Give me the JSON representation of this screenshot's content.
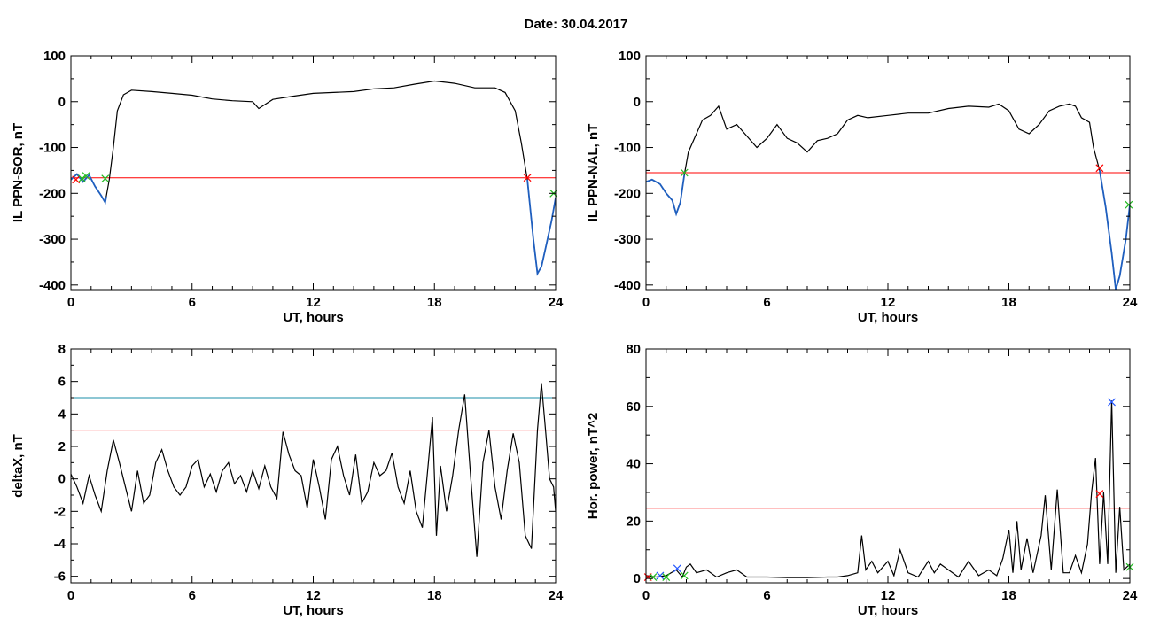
{
  "figure": {
    "date_label": "Date:",
    "date_value": "30.04.2017"
  },
  "colors": {
    "axis": "#000000",
    "signal": "#000000",
    "highlight": "#1f5fbf",
    "threshold_red": "#ff0000",
    "threshold_teal": "#1b8fa8",
    "marker_red": "#ff0000",
    "marker_green": "#22bb22",
    "marker_blue": "#2255ff"
  },
  "chart_data": [
    {
      "id": "ppn-sor",
      "type": "line",
      "xlabel": "UT, hours",
      "ylabel": "IL PPN-SOR, nT",
      "xlim": [
        0,
        24
      ],
      "ylim": [
        -410,
        100
      ],
      "xticks": [
        0,
        6,
        12,
        18,
        24
      ],
      "yticks": [
        -400,
        -300,
        -200,
        -100,
        0,
        100
      ],
      "series": [
        {
          "color": "signal",
          "x": [
            0,
            0.3,
            0.6,
            0.9,
            1.2,
            1.5,
            1.7,
            1.9,
            2.1,
            2.3,
            2.6,
            3,
            4,
            5,
            6,
            7,
            8,
            9,
            9.3,
            10,
            11,
            12,
            13,
            14,
            15,
            16,
            17,
            18,
            19,
            20,
            21,
            21.5,
            22,
            22.3,
            22.6,
            22.9,
            23.1,
            23.3,
            23.5,
            23.8,
            24
          ],
          "y": [
            -170,
            -158,
            -175,
            -160,
            -185,
            -205,
            -220,
            -170,
            -100,
            -20,
            15,
            25,
            22,
            18,
            14,
            6,
            2,
            0,
            -15,
            5,
            12,
            18,
            20,
            22,
            28,
            30,
            38,
            45,
            40,
            30,
            30,
            20,
            -20,
            -90,
            -170,
            -300,
            -375,
            -360,
            -320,
            -260,
            -210
          ]
        }
      ],
      "highlight_ranges": [
        [
          0,
          1.75
        ],
        [
          22.6,
          24
        ]
      ],
      "thresholds": [
        {
          "y": -166,
          "color": "threshold_red"
        }
      ],
      "markers": [
        {
          "x": 0.25,
          "y": -170,
          "color": "marker_red"
        },
        {
          "x": 0.55,
          "y": -168,
          "color": "marker_green"
        },
        {
          "x": 0.75,
          "y": -162,
          "color": "marker_green"
        },
        {
          "x": 1.7,
          "y": -168,
          "color": "marker_green"
        },
        {
          "x": 22.6,
          "y": -166,
          "color": "marker_red"
        },
        {
          "x": 23.9,
          "y": -200,
          "color": "marker_green"
        }
      ]
    },
    {
      "id": "ppn-nal",
      "type": "line",
      "xlabel": "UT, hours",
      "ylabel": "IL PPN-NAL, nT",
      "xlim": [
        0,
        24
      ],
      "ylim": [
        -410,
        100
      ],
      "xticks": [
        0,
        6,
        12,
        18,
        24
      ],
      "yticks": [
        -400,
        -300,
        -200,
        -100,
        0,
        100
      ],
      "series": [
        {
          "color": "signal",
          "x": [
            0,
            0.3,
            0.7,
            1,
            1.3,
            1.5,
            1.7,
            1.9,
            2.1,
            2.4,
            2.8,
            3.2,
            3.6,
            4,
            4.5,
            5,
            5.5,
            6,
            6.5,
            7,
            7.5,
            8,
            8.5,
            9,
            9.5,
            10,
            10.5,
            11,
            12,
            13,
            14,
            15,
            16,
            17,
            17.5,
            18,
            18.5,
            19,
            19.5,
            20,
            20.5,
            21,
            21.3,
            21.6,
            22,
            22.2,
            22.5,
            22.8,
            23.1,
            23.3,
            23.5,
            23.8,
            24
          ],
          "y": [
            -175,
            -170,
            -180,
            -200,
            -215,
            -245,
            -220,
            -160,
            -110,
            -80,
            -40,
            -30,
            -10,
            -60,
            -50,
            -75,
            -100,
            -80,
            -50,
            -80,
            -90,
            -110,
            -85,
            -80,
            -70,
            -40,
            -30,
            -35,
            -30,
            -25,
            -25,
            -15,
            -10,
            -12,
            -5,
            -20,
            -60,
            -70,
            -50,
            -20,
            -10,
            -5,
            -10,
            -35,
            -45,
            -100,
            -150,
            -230,
            -330,
            -410,
            -380,
            -300,
            -225
          ]
        }
      ],
      "highlight_ranges": [
        [
          0,
          1.9
        ],
        [
          22.5,
          24
        ]
      ],
      "thresholds": [
        {
          "y": -155,
          "color": "threshold_red"
        }
      ],
      "markers": [
        {
          "x": 1.9,
          "y": -155,
          "color": "marker_green"
        },
        {
          "x": 22.5,
          "y": -145,
          "color": "marker_red"
        },
        {
          "x": 23.95,
          "y": -225,
          "color": "marker_green"
        }
      ]
    },
    {
      "id": "deltax",
      "type": "line",
      "xlabel": "UT, hours",
      "ylabel": "deltaX, nT",
      "xlim": [
        0,
        24
      ],
      "ylim": [
        -6.4,
        8
      ],
      "xticks": [
        0,
        6,
        12,
        18,
        24
      ],
      "yticks": [
        -6,
        -4,
        -2,
        0,
        2,
        4,
        6,
        8
      ],
      "series": [
        {
          "color": "signal",
          "x": [
            0,
            0.3,
            0.6,
            0.9,
            1.2,
            1.5,
            1.8,
            2.1,
            2.4,
            2.7,
            3,
            3.3,
            3.6,
            3.9,
            4.2,
            4.5,
            4.8,
            5.1,
            5.4,
            5.7,
            6,
            6.3,
            6.6,
            6.9,
            7.2,
            7.5,
            7.8,
            8.1,
            8.4,
            8.7,
            9,
            9.3,
            9.6,
            9.9,
            10.2,
            10.5,
            10.8,
            11.1,
            11.4,
            11.7,
            12,
            12.3,
            12.6,
            12.9,
            13.2,
            13.5,
            13.8,
            14.1,
            14.4,
            14.7,
            15,
            15.3,
            15.6,
            15.9,
            16.2,
            16.5,
            16.8,
            17.1,
            17.4,
            17.7,
            17.9,
            18.1,
            18.3,
            18.6,
            18.9,
            19.2,
            19.5,
            19.8,
            20.1,
            20.4,
            20.7,
            21,
            21.3,
            21.6,
            21.9,
            22.2,
            22.5,
            22.8,
            23.1,
            23.3,
            23.5,
            23.7,
            23.9,
            24
          ],
          "y": [
            0.3,
            -0.5,
            -1.5,
            0.2,
            -1,
            -2,
            0.5,
            2.4,
            1,
            -0.5,
            -2,
            0.5,
            -1.5,
            -1,
            1,
            1.8,
            0.5,
            -0.5,
            -1,
            -0.5,
            0.8,
            1.2,
            -0.5,
            0.3,
            -0.8,
            0.5,
            1,
            -0.3,
            0.2,
            -0.8,
            0.5,
            -0.6,
            0.8,
            -0.5,
            -1.2,
            2.9,
            1.5,
            0.5,
            0.2,
            -1.8,
            1.2,
            -0.5,
            -2.5,
            1.2,
            2,
            0.2,
            -1,
            1.5,
            -1.5,
            -0.8,
            1,
            0.2,
            0.5,
            1.6,
            -0.5,
            -1.5,
            0.5,
            -2,
            -3,
            1,
            3.8,
            -3.5,
            0.8,
            -2,
            0.2,
            3,
            5.2,
            0,
            -4.8,
            1,
            3,
            -0.5,
            -2.5,
            0.5,
            2.8,
            1,
            -3.5,
            -4.3,
            3,
            5.9,
            3,
            0,
            -0.5,
            -2
          ]
        }
      ],
      "thresholds": [
        {
          "y": 5,
          "color": "threshold_teal"
        },
        {
          "y": 3,
          "color": "threshold_red"
        }
      ],
      "markers": []
    },
    {
      "id": "hor-power",
      "type": "line",
      "xlabel": "UT, hours",
      "ylabel": "Hor. power, nT^2",
      "xlim": [
        0,
        24
      ],
      "ylim": [
        -1.5,
        80
      ],
      "xticks": [
        0,
        6,
        12,
        18,
        24
      ],
      "yticks": [
        0,
        20,
        40,
        60,
        80
      ],
      "series": [
        {
          "color": "signal",
          "x": [
            0,
            0.5,
            1,
            1.5,
            1.8,
            2,
            2.2,
            2.5,
            3,
            3.5,
            4,
            4.5,
            5,
            6,
            7,
            8,
            9,
            9.5,
            10,
            10.5,
            10.7,
            10.9,
            11.2,
            11.5,
            12,
            12.3,
            12.6,
            13,
            13.5,
            14,
            14.3,
            14.6,
            15,
            15.5,
            16,
            16.5,
            17,
            17.4,
            17.7,
            18,
            18.2,
            18.4,
            18.6,
            18.9,
            19.2,
            19.6,
            19.8,
            20.1,
            20.4,
            20.7,
            21,
            21.3,
            21.6,
            21.9,
            22.1,
            22.3,
            22.5,
            22.7,
            22.9,
            23.1,
            23.3,
            23.5,
            23.7,
            24
          ],
          "y": [
            1,
            0.5,
            1,
            3,
            0.5,
            4,
            5,
            2,
            3,
            0.5,
            2,
            3,
            0.5,
            0.5,
            0.3,
            0.3,
            0.5,
            0.5,
            1,
            2,
            15,
            3,
            6,
            2,
            6,
            1,
            10,
            2,
            0.5,
            6,
            2,
            5,
            3,
            0.5,
            6,
            1,
            3,
            1,
            7,
            17,
            2,
            20,
            3,
            14,
            2,
            15,
            29,
            3,
            31,
            2,
            2,
            8,
            2,
            12,
            30,
            42,
            5,
            30,
            5,
            62,
            2,
            25,
            3,
            5
          ]
        }
      ],
      "thresholds": [
        {
          "y": 24.5,
          "color": "threshold_red"
        }
      ],
      "markers": [
        {
          "x": 0.1,
          "y": 0.5,
          "color": "marker_red"
        },
        {
          "x": 0.35,
          "y": 0.5,
          "color": "marker_green"
        },
        {
          "x": 0.7,
          "y": 1,
          "color": "marker_blue"
        },
        {
          "x": 1.0,
          "y": 0.5,
          "color": "marker_green"
        },
        {
          "x": 1.55,
          "y": 3.5,
          "color": "marker_blue"
        },
        {
          "x": 1.9,
          "y": 1,
          "color": "marker_green"
        },
        {
          "x": 22.5,
          "y": 29.5,
          "color": "marker_red"
        },
        {
          "x": 23.1,
          "y": 61.5,
          "color": "marker_blue"
        },
        {
          "x": 24,
          "y": 4,
          "color": "marker_green"
        }
      ]
    }
  ]
}
